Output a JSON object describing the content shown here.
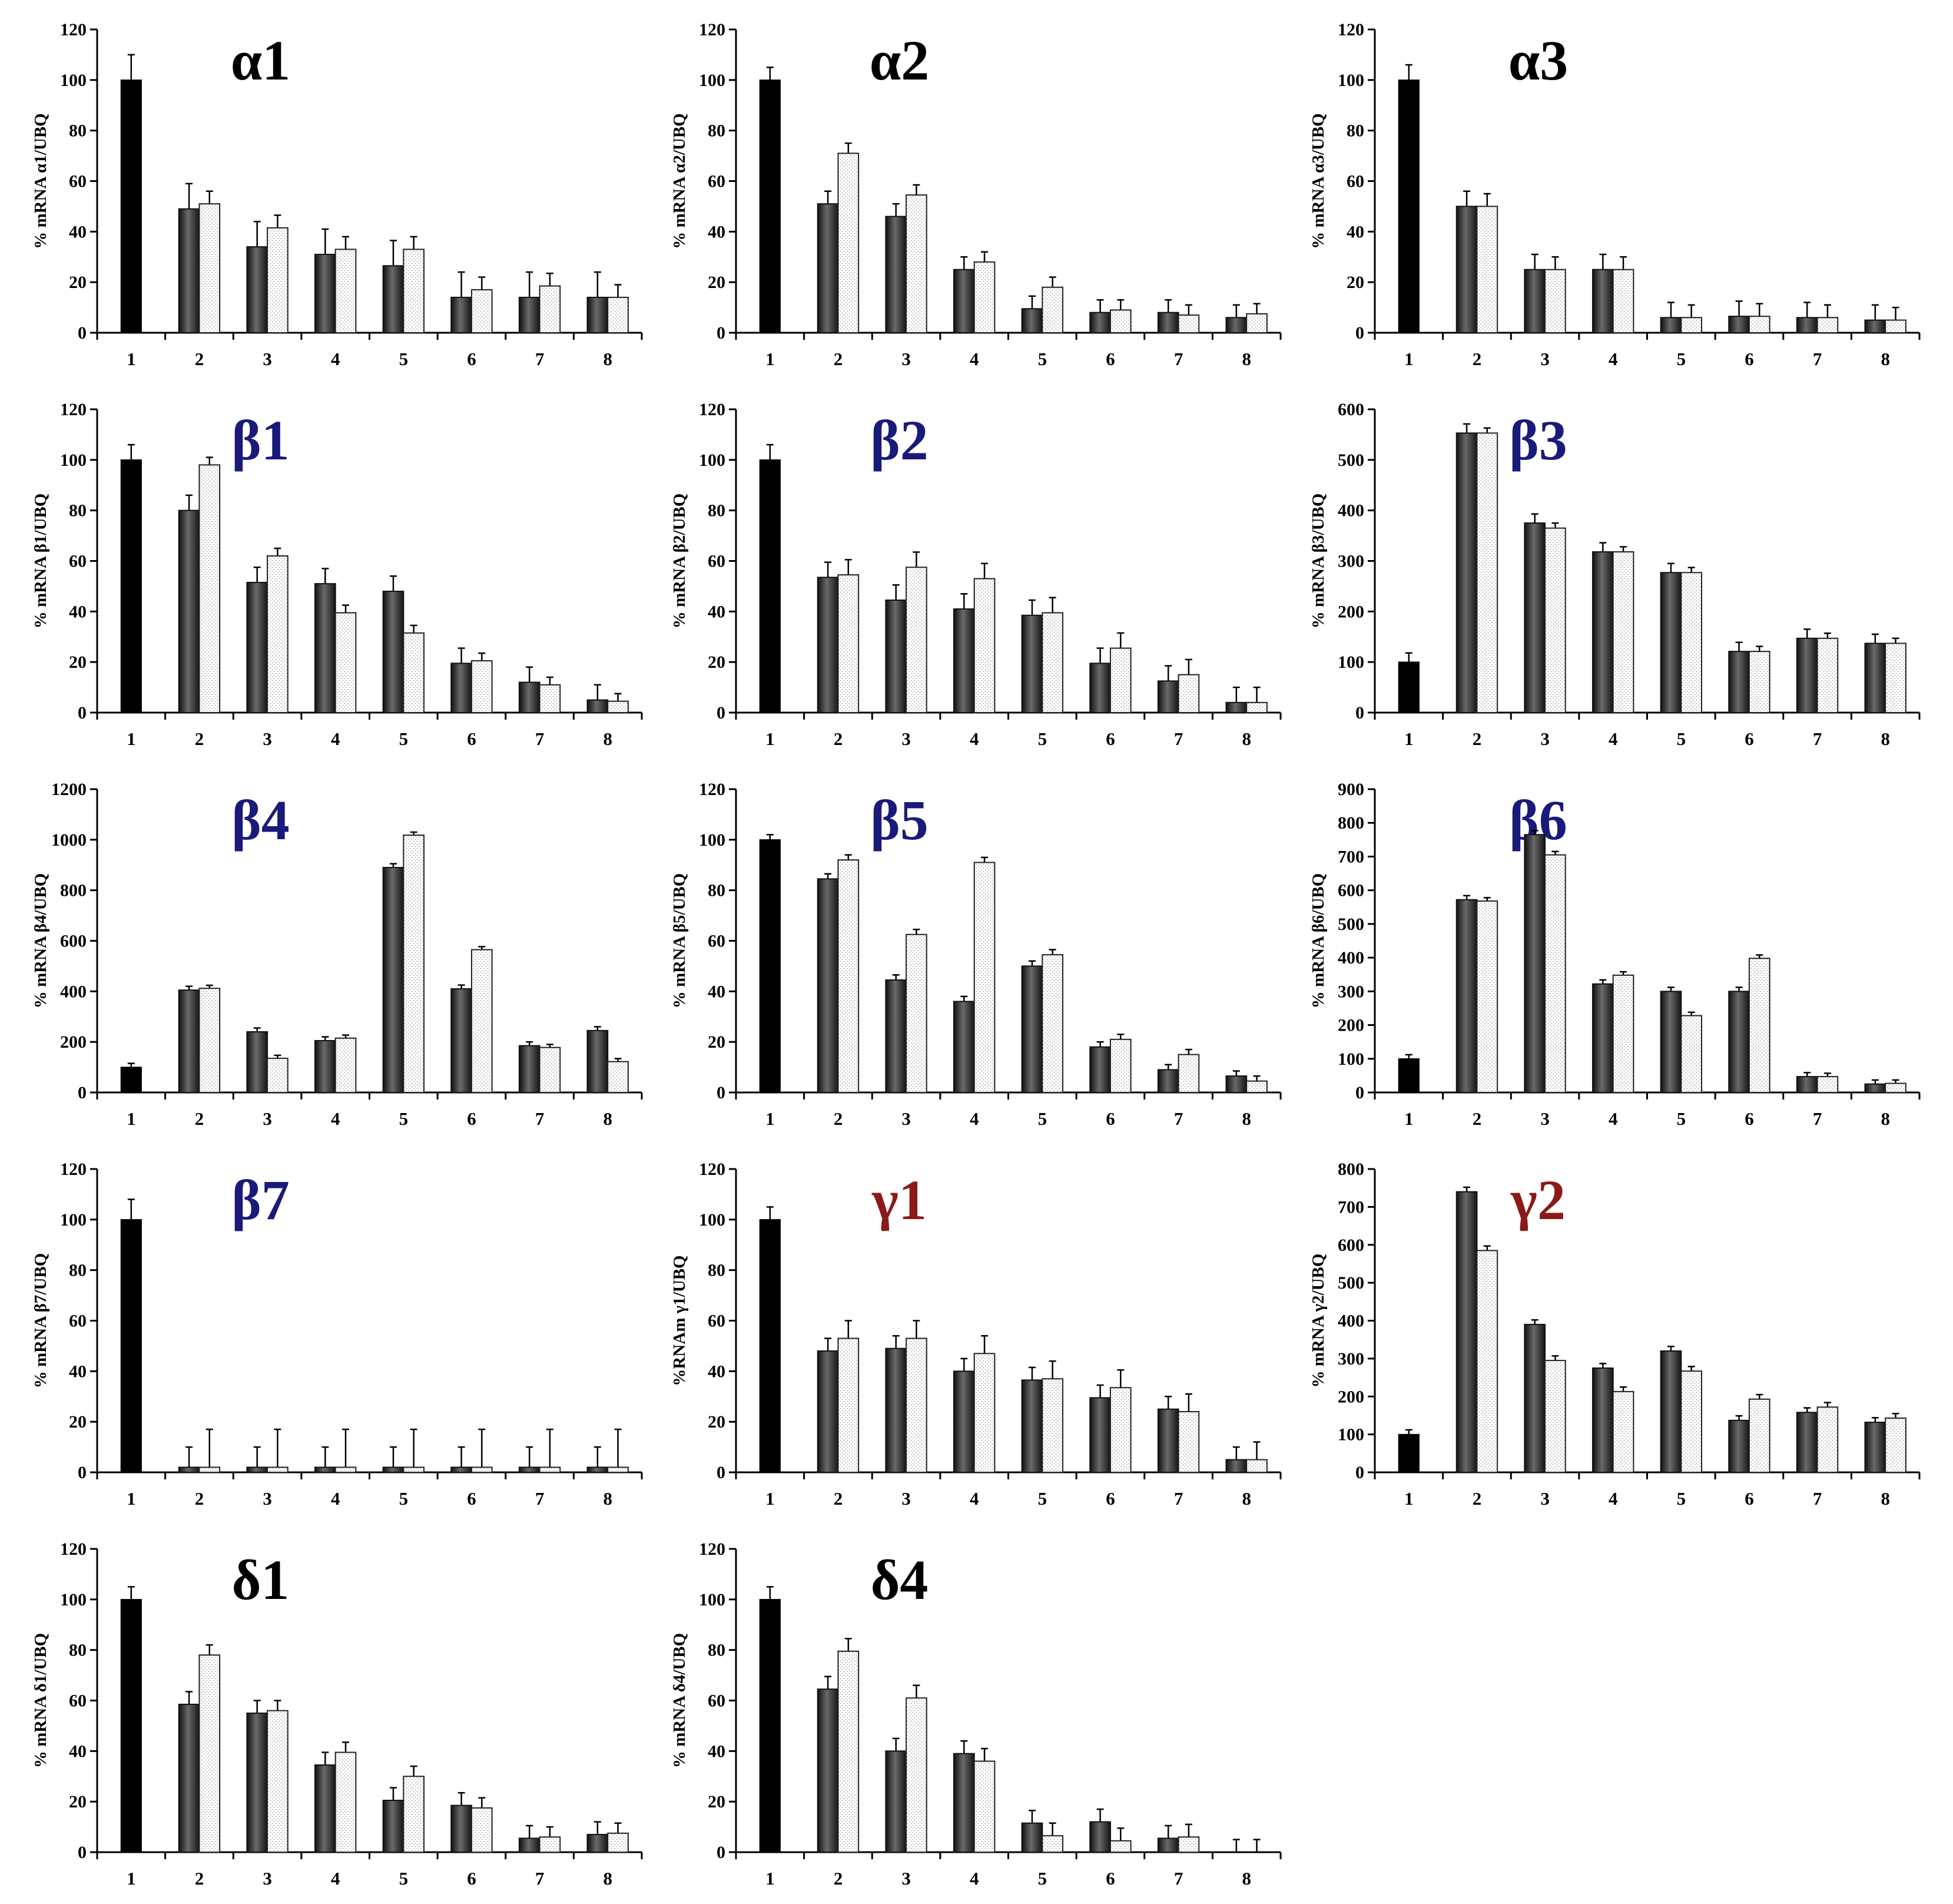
{
  "colors": {
    "title_black": "#000000",
    "title_blue": "#1a1a7a",
    "title_red": "#8b1a1a",
    "ref_bar": "#000000",
    "dark_bar": "#3a3a3a",
    "dotted_bar": "#ffffff"
  },
  "legend_note": "",
  "chart_data": [
    {
      "id": "alpha1",
      "type": "bar",
      "title": "α1",
      "title_color": "black",
      "ylabel": "% mRNA α1/UBQ",
      "ylim": [
        0,
        120
      ],
      "yticks": [
        "0",
        "20",
        "40",
        "60",
        "80",
        "100",
        "120"
      ],
      "categories": [
        "1",
        "2",
        "3",
        "4",
        "5",
        "6",
        "7",
        "8"
      ],
      "reference": {
        "value": 100,
        "err": 10
      },
      "series": [
        {
          "name": "dark",
          "values": [
            null,
            49,
            34,
            31,
            26.5,
            14,
            14,
            14
          ],
          "err": [
            null,
            10,
            10,
            10,
            10,
            10,
            10,
            10
          ]
        },
        {
          "name": "dotted",
          "values": [
            null,
            51,
            41.5,
            33,
            33,
            17,
            18.5,
            14
          ],
          "err": [
            null,
            5,
            5,
            5,
            5,
            5,
            5,
            5
          ]
        }
      ]
    },
    {
      "id": "alpha2",
      "type": "bar",
      "title": "α2",
      "title_color": "black",
      "ylabel": "% mRNA α2/UBQ",
      "ylim": [
        0,
        120
      ],
      "yticks": [
        "0",
        "20",
        "40",
        "60",
        "80",
        "100",
        "120"
      ],
      "categories": [
        "1",
        "2",
        "3",
        "4",
        "5",
        "6",
        "7",
        "8"
      ],
      "reference": {
        "value": 100,
        "err": 5
      },
      "series": [
        {
          "name": "dark",
          "values": [
            null,
            51,
            46,
            25,
            9.5,
            8,
            8,
            6
          ],
          "err": [
            null,
            5,
            5,
            5,
            5,
            5,
            5,
            5
          ]
        },
        {
          "name": "dotted",
          "values": [
            null,
            71,
            54.5,
            28,
            18,
            9,
            7,
            7.5
          ],
          "err": [
            null,
            4,
            4,
            4,
            4,
            4,
            4,
            4
          ]
        }
      ]
    },
    {
      "id": "alpha3",
      "type": "bar",
      "title": "α3",
      "title_color": "black",
      "ylabel": "% mRNA α3/UBQ",
      "ylim": [
        0,
        120
      ],
      "yticks": [
        "0",
        "20",
        "40",
        "60",
        "80",
        "100",
        "120"
      ],
      "categories": [
        "1",
        "2",
        "3",
        "4",
        "5",
        "6",
        "7",
        "8"
      ],
      "reference": {
        "value": 100,
        "err": 6
      },
      "series": [
        {
          "name": "dark",
          "values": [
            null,
            50,
            25,
            25,
            6,
            6.5,
            6,
            5
          ],
          "err": [
            null,
            6,
            6,
            6,
            6,
            6,
            6,
            6
          ]
        },
        {
          "name": "dotted",
          "values": [
            null,
            50,
            25,
            25,
            6,
            6.5,
            6,
            5
          ],
          "err": [
            null,
            5,
            5,
            5,
            5,
            5,
            5,
            5
          ]
        }
      ]
    },
    {
      "id": "beta1",
      "type": "bar",
      "title": "β1",
      "title_color": "blue",
      "ylabel": "% mRNA β1/UBQ",
      "ylim": [
        0,
        120
      ],
      "yticks": [
        "0",
        "20",
        "40",
        "60",
        "80",
        "100",
        "120"
      ],
      "categories": [
        "1",
        "2",
        "3",
        "4",
        "5",
        "6",
        "7",
        "8"
      ],
      "reference": {
        "value": 100,
        "err": 6
      },
      "series": [
        {
          "name": "dark",
          "values": [
            null,
            80,
            51.5,
            51,
            48,
            19.5,
            12,
            5
          ],
          "err": [
            null,
            6,
            6,
            6,
            6,
            6,
            6,
            6
          ]
        },
        {
          "name": "dotted",
          "values": [
            null,
            98,
            62,
            39.5,
            31.5,
            20.5,
            11,
            4.5
          ],
          "err": [
            null,
            3,
            3,
            3,
            3,
            3,
            3,
            3
          ]
        }
      ]
    },
    {
      "id": "beta2",
      "type": "bar",
      "title": "β2",
      "title_color": "blue",
      "ylabel": "% mRNA β2/UBQ",
      "ylim": [
        0,
        120
      ],
      "yticks": [
        "0",
        "20",
        "40",
        "60",
        "80",
        "100",
        "120"
      ],
      "categories": [
        "1",
        "2",
        "3",
        "4",
        "5",
        "6",
        "7",
        "8"
      ],
      "reference": {
        "value": 100,
        "err": 6
      },
      "series": [
        {
          "name": "dark",
          "values": [
            null,
            53.5,
            44.5,
            41,
            38.5,
            19.5,
            12.5,
            4
          ],
          "err": [
            null,
            6,
            6,
            6,
            6,
            6,
            6,
            6
          ]
        },
        {
          "name": "dotted",
          "values": [
            null,
            54.5,
            57.5,
            53,
            39.5,
            25.5,
            15,
            4
          ],
          "err": [
            null,
            6,
            6,
            6,
            6,
            6,
            6,
            6
          ]
        }
      ]
    },
    {
      "id": "beta3",
      "type": "bar",
      "title": "β3",
      "title_color": "blue",
      "ylabel": "% mRNA β3/UBQ",
      "ylim": [
        0,
        600
      ],
      "yticks": [
        "0",
        "100",
        "200",
        "300",
        "400",
        "500",
        "600"
      ],
      "categories": [
        "1",
        "2",
        "3",
        "4",
        "5",
        "6",
        "7",
        "8"
      ],
      "reference": {
        "value": 100,
        "err": 18
      },
      "series": [
        {
          "name": "dark",
          "values": [
            null,
            553,
            375,
            318,
            277,
            121,
            147,
            137
          ],
          "err": [
            null,
            18,
            18,
            18,
            18,
            18,
            18,
            18
          ]
        },
        {
          "name": "dotted",
          "values": [
            null,
            553,
            365,
            318,
            277,
            121,
            147,
            137
          ],
          "err": [
            null,
            10,
            10,
            10,
            10,
            10,
            10,
            10
          ]
        }
      ]
    },
    {
      "id": "beta4",
      "type": "bar",
      "title": "β4",
      "title_color": "blue",
      "ylabel": "% mRNA β4/UBQ",
      "ylim": [
        0,
        1200
      ],
      "yticks": [
        "0",
        "200",
        "400",
        "600",
        "800",
        "1000",
        "1200"
      ],
      "categories": [
        "1",
        "2",
        "3",
        "4",
        "5",
        "6",
        "7",
        "8"
      ],
      "reference": {
        "value": 100,
        "err": 15
      },
      "series": [
        {
          "name": "dark",
          "values": [
            null,
            405,
            240,
            205,
            890,
            410,
            185,
            245
          ],
          "err": [
            null,
            15,
            15,
            15,
            15,
            15,
            15,
            15
          ]
        },
        {
          "name": "dotted",
          "values": [
            null,
            412,
            135,
            215,
            1018,
            565,
            178,
            122
          ],
          "err": [
            null,
            12,
            12,
            12,
            12,
            12,
            12,
            12
          ]
        }
      ]
    },
    {
      "id": "beta5",
      "type": "bar",
      "title": "β5",
      "title_color": "blue",
      "ylabel": "% mRNA β5/UBQ",
      "ylim": [
        0,
        120
      ],
      "yticks": [
        "0",
        "20",
        "40",
        "60",
        "80",
        "100",
        "120"
      ],
      "categories": [
        "1",
        "2",
        "3",
        "4",
        "5",
        "6",
        "7",
        "8"
      ],
      "reference": {
        "value": 100,
        "err": 2
      },
      "series": [
        {
          "name": "dark",
          "values": [
            null,
            84.5,
            44.5,
            36,
            50,
            18,
            9,
            6.5
          ],
          "err": [
            null,
            2,
            2,
            2,
            2,
            2,
            2,
            2
          ]
        },
        {
          "name": "dotted",
          "values": [
            null,
            92,
            62.5,
            91,
            54.5,
            21,
            15,
            4.5
          ],
          "err": [
            null,
            2,
            2,
            2,
            2,
            2,
            2,
            2
          ]
        }
      ]
    },
    {
      "id": "beta6",
      "type": "bar",
      "title": "β6",
      "title_color": "blue",
      "ylabel": "% mRNA β6/UBQ",
      "ylim": [
        0,
        900
      ],
      "yticks": [
        "0",
        "100",
        "200",
        "300",
        "400",
        "500",
        "600",
        "700",
        "800",
        "900"
      ],
      "categories": [
        "1",
        "2",
        "3",
        "4",
        "5",
        "6",
        "7",
        "8"
      ],
      "reference": {
        "value": 100,
        "err": 12
      },
      "series": [
        {
          "name": "dark",
          "values": [
            null,
            572,
            765,
            322,
            300,
            300,
            47,
            25
          ],
          "err": [
            null,
            12,
            12,
            12,
            12,
            12,
            12,
            12
          ]
        },
        {
          "name": "dotted",
          "values": [
            null,
            568,
            705,
            348,
            228,
            398,
            47,
            27
          ],
          "err": [
            null,
            10,
            10,
            10,
            10,
            10,
            10,
            10
          ]
        }
      ]
    },
    {
      "id": "beta7",
      "type": "bar",
      "title": "β7",
      "title_color": "blue",
      "ylabel": "% mRNA β7/UBQ",
      "ylim": [
        0,
        120
      ],
      "yticks": [
        "0",
        "20",
        "40",
        "60",
        "80",
        "100",
        "120"
      ],
      "categories": [
        "1",
        "2",
        "3",
        "4",
        "5",
        "6",
        "7",
        "8"
      ],
      "reference": {
        "value": 100,
        "err": 8
      },
      "series": [
        {
          "name": "dark",
          "values": [
            null,
            2,
            2,
            2,
            2,
            2,
            2,
            2
          ],
          "err": [
            null,
            8,
            8,
            8,
            8,
            8,
            8,
            8
          ]
        },
        {
          "name": "dotted",
          "values": [
            null,
            2,
            2,
            2,
            2,
            2,
            2,
            2
          ],
          "err": [
            null,
            15,
            15,
            15,
            15,
            15,
            15,
            15
          ]
        }
      ]
    },
    {
      "id": "gamma1",
      "type": "bar",
      "title": "γ1",
      "title_color": "red",
      "ylabel": "%RNAm γ1/UBQ",
      "ylim": [
        0,
        120
      ],
      "yticks": [
        "0",
        "20",
        "40",
        "60",
        "80",
        "100",
        "120"
      ],
      "categories": [
        "1",
        "2",
        "3",
        "4",
        "5",
        "6",
        "7",
        "8"
      ],
      "reference": {
        "value": 100,
        "err": 5
      },
      "series": [
        {
          "name": "dark",
          "values": [
            null,
            48,
            49,
            40,
            36.5,
            29.5,
            25,
            5
          ],
          "err": [
            null,
            5,
            5,
            5,
            5,
            5,
            5,
            5
          ]
        },
        {
          "name": "dotted",
          "values": [
            null,
            53,
            53,
            47,
            37,
            33.5,
            24,
            5
          ],
          "err": [
            null,
            7,
            7,
            7,
            7,
            7,
            7,
            7
          ]
        }
      ]
    },
    {
      "id": "gamma2",
      "type": "bar",
      "title": "γ2",
      "title_color": "red",
      "ylabel": "% mRNA γ2/UBQ",
      "ylim": [
        0,
        800
      ],
      "yticks": [
        "0",
        "100",
        "200",
        "300",
        "400",
        "500",
        "600",
        "700",
        "800"
      ],
      "categories": [
        "1",
        "2",
        "3",
        "4",
        "5",
        "6",
        "7",
        "8"
      ],
      "reference": {
        "value": 100,
        "err": 12
      },
      "series": [
        {
          "name": "dark",
          "values": [
            null,
            740,
            390,
            275,
            320,
            137,
            158,
            132
          ],
          "err": [
            null,
            12,
            12,
            12,
            12,
            12,
            12,
            12
          ]
        },
        {
          "name": "dotted",
          "values": [
            null,
            585,
            295,
            213,
            267,
            193,
            172,
            143
          ],
          "err": [
            null,
            12,
            12,
            12,
            12,
            12,
            12,
            12
          ]
        }
      ]
    },
    {
      "id": "delta1",
      "type": "bar",
      "title": "δ1",
      "title_color": "black",
      "ylabel": "% mRNA δ1/UBQ",
      "ylim": [
        0,
        120
      ],
      "yticks": [
        "0",
        "20",
        "40",
        "60",
        "80",
        "100",
        "120"
      ],
      "categories": [
        "1",
        "2",
        "3",
        "4",
        "5",
        "6",
        "7",
        "8"
      ],
      "reference": {
        "value": 100,
        "err": 5
      },
      "series": [
        {
          "name": "dark",
          "values": [
            null,
            58.5,
            55,
            34.5,
            20.5,
            18.5,
            5.5,
            7
          ],
          "err": [
            null,
            5,
            5,
            5,
            5,
            5,
            5,
            5
          ]
        },
        {
          "name": "dotted",
          "values": [
            null,
            78,
            56,
            39.5,
            30,
            17.5,
            6,
            7.5
          ],
          "err": [
            null,
            4,
            4,
            4,
            4,
            4,
            4,
            4
          ]
        }
      ]
    },
    {
      "id": "delta4",
      "type": "bar",
      "title": "δ4",
      "title_color": "black",
      "ylabel": "% mRNA δ4/UBQ",
      "ylim": [
        0,
        120
      ],
      "yticks": [
        "0",
        "20",
        "40",
        "60",
        "80",
        "100",
        "120"
      ],
      "categories": [
        "1",
        "2",
        "3",
        "4",
        "5",
        "6",
        "7",
        "8"
      ],
      "reference": {
        "value": 100,
        "err": 5
      },
      "series": [
        {
          "name": "dark",
          "values": [
            null,
            64.5,
            40,
            39,
            11.5,
            12,
            5.5,
            0
          ],
          "err": [
            null,
            5,
            5,
            5,
            5,
            5,
            5,
            5
          ]
        },
        {
          "name": "dotted",
          "values": [
            null,
            79.5,
            61,
            36,
            6.5,
            4.5,
            6,
            0
          ],
          "err": [
            null,
            5,
            5,
            5,
            5,
            5,
            5,
            5
          ]
        }
      ]
    }
  ]
}
